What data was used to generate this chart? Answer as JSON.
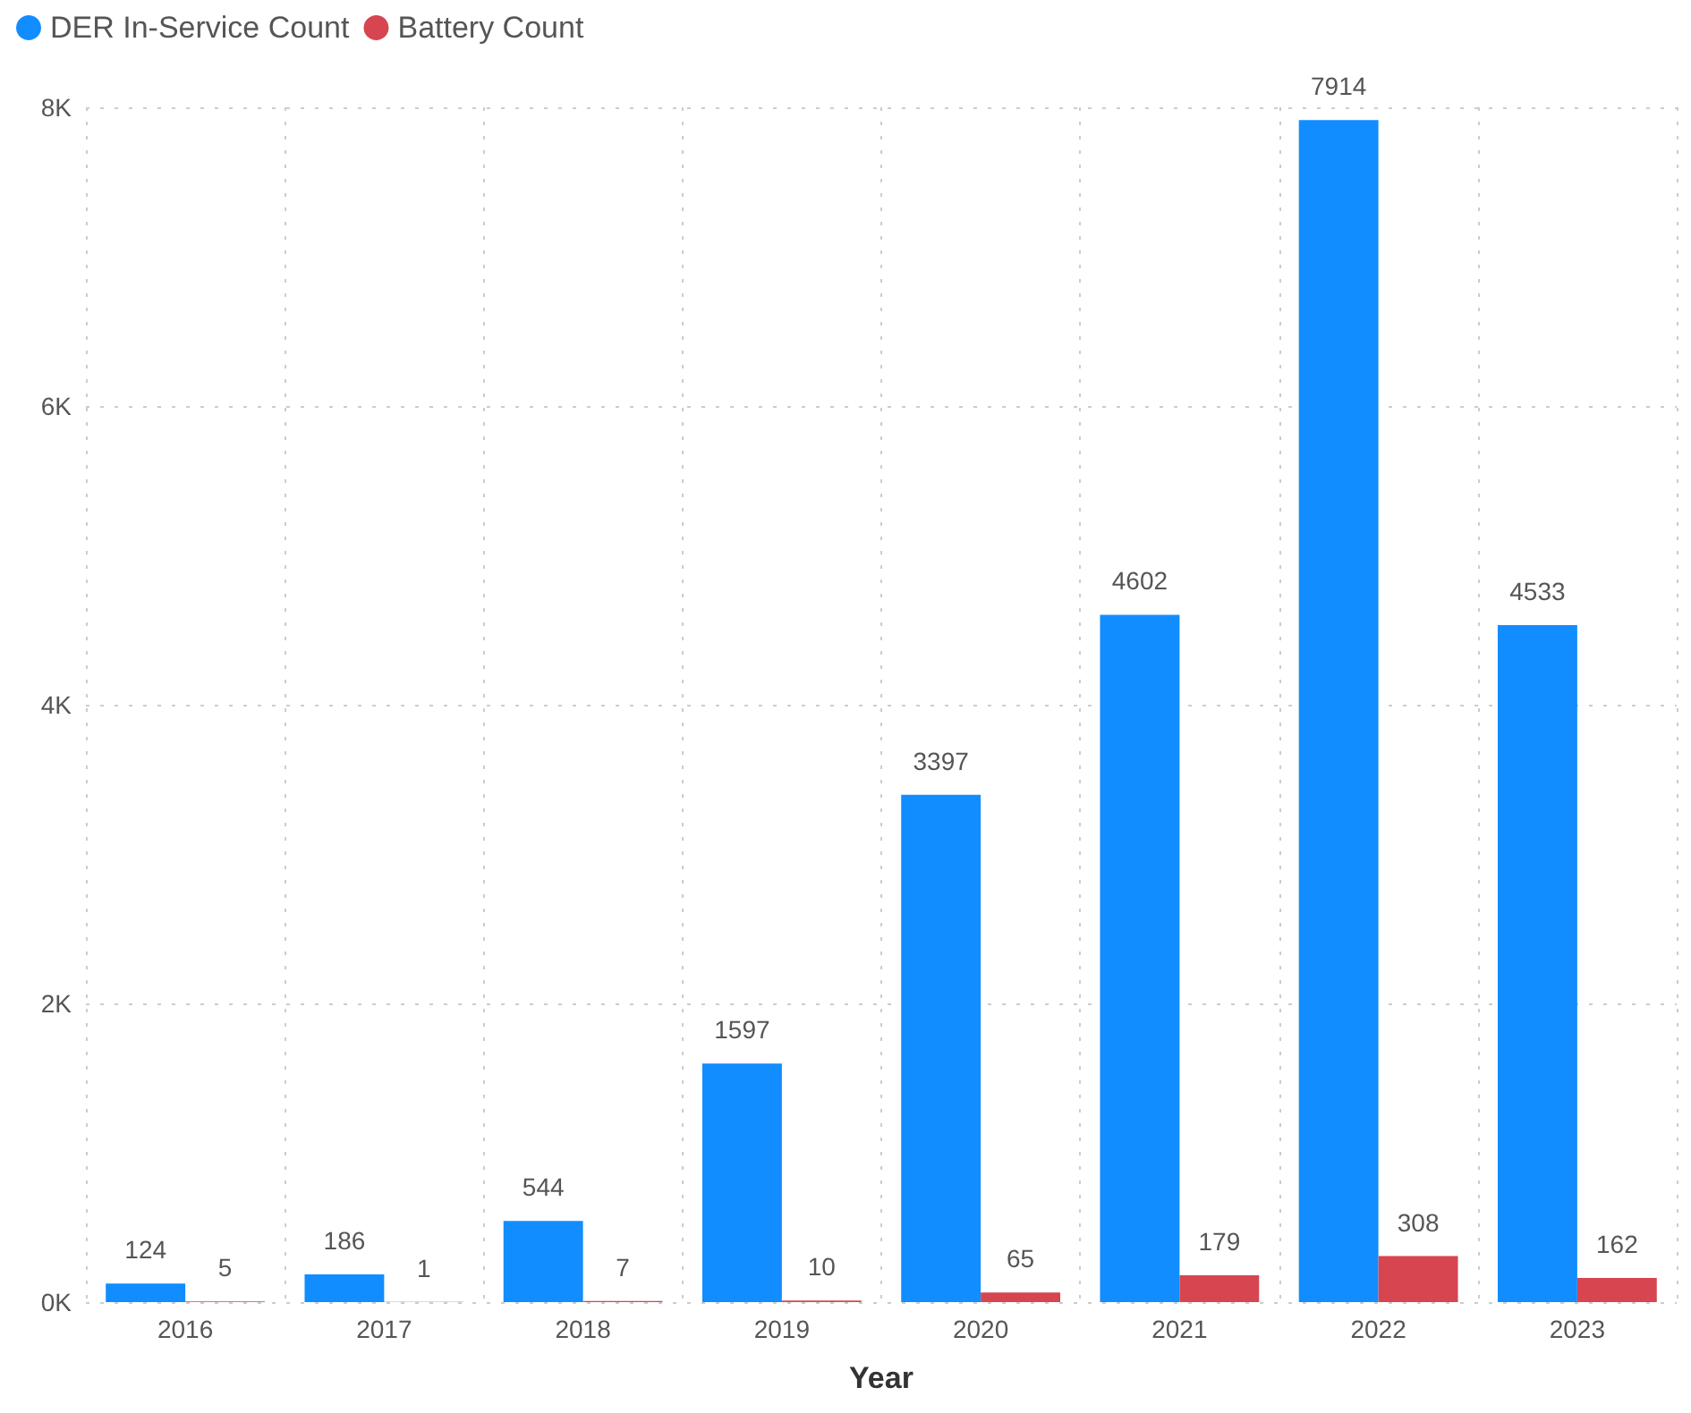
{
  "chart_data": {
    "type": "bar",
    "xlabel": "Year",
    "categories": [
      "2016",
      "2017",
      "2018",
      "2019",
      "2020",
      "2021",
      "2022",
      "2023"
    ],
    "series": [
      {
        "name": "DER In-Service Count",
        "color": "#118dff",
        "values": [
          124,
          186,
          544,
          1597,
          3397,
          4602,
          7914,
          4533
        ]
      },
      {
        "name": "Battery Count",
        "color": "#d64550",
        "values": [
          5,
          1,
          7,
          10,
          65,
          179,
          308,
          162
        ]
      }
    ],
    "ylim": [
      0,
      8000
    ],
    "yticks": [
      {
        "value": 0,
        "label": "0K"
      },
      {
        "value": 2000,
        "label": "2K"
      },
      {
        "value": 4000,
        "label": "4K"
      },
      {
        "value": 6000,
        "label": "6K"
      },
      {
        "value": 8000,
        "label": "8K"
      }
    ],
    "grid": true,
    "legend": "top left",
    "data_labels": true
  }
}
